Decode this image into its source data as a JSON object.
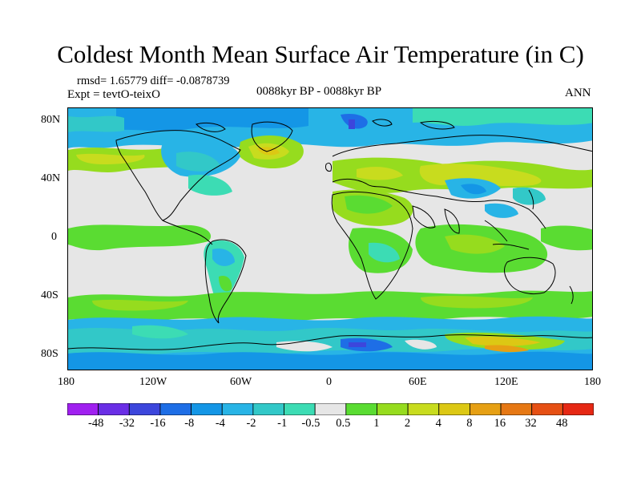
{
  "title": "Coldest Month Mean Surface Air Temperature (in C)",
  "stats": "rmsd= 1.65779 diff= -0.0878739",
  "experiment": "Expt = tevtO-teixO",
  "period": "0088kyr BP - 0088kyr BP",
  "season": "ANN",
  "lat_ticks": [
    "80N",
    "40N",
    "0",
    "40S",
    "80S"
  ],
  "lon_ticks": [
    "180",
    "120W",
    "60W",
    "0",
    "60E",
    "120E",
    "180"
  ],
  "colorbar": {
    "colors": [
      "#a020f0",
      "#6a2ee6",
      "#3c46dc",
      "#1e6ee6",
      "#1496e6",
      "#28b4e6",
      "#32c8c8",
      "#3cdcb4",
      "#e6e6e6",
      "#5adc32",
      "#96dc1e",
      "#c8dc1e",
      "#dcc814",
      "#e6a014",
      "#e67814",
      "#e65014",
      "#e62814"
    ],
    "labels": [
      "-48",
      "-32",
      "-16",
      "-8",
      "-4",
      "-2",
      "-1",
      "-0.5",
      "0.5",
      "1",
      "2",
      "4",
      "8",
      "16",
      "32",
      "48"
    ]
  }
}
